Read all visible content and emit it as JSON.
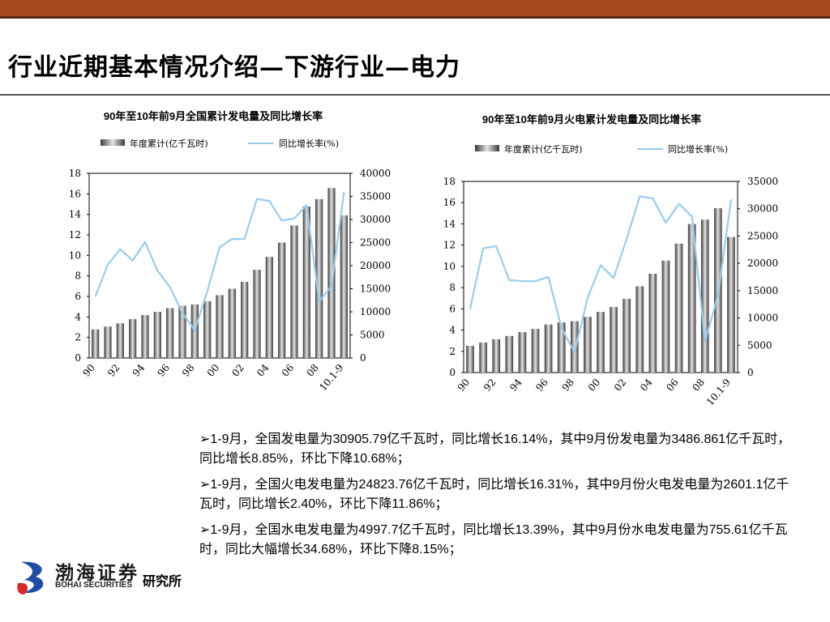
{
  "title": "行业近期基本情况介绍—下游行业—电力",
  "chart_data": [
    {
      "type": "bar",
      "title": "90年至10年前9月全国累计发电量及同比增长率",
      "categories": [
        "90",
        "91",
        "92",
        "93",
        "94",
        "95",
        "96",
        "97",
        "98",
        "99",
        "00",
        "01",
        "02",
        "03",
        "04",
        "05",
        "06",
        "07",
        "08",
        "09",
        "10.1-9"
      ],
      "x_tick_labels": [
        "90",
        "92",
        "94",
        "96",
        "98",
        "00",
        "02",
        "04",
        "06",
        "08",
        "10.1-9"
      ],
      "y_left": {
        "ticks": [
          0,
          2,
          4,
          6,
          8,
          10,
          12,
          14,
          16,
          18
        ],
        "range": [
          0,
          18
        ]
      },
      "y_right": {
        "ticks": [
          0,
          5000,
          10000,
          15000,
          20000,
          25000,
          30000,
          35000,
          40000
        ],
        "range": [
          0,
          40000
        ]
      },
      "series": [
        {
          "name": "年度累计(亿千瓦时)",
          "kind": "bar",
          "axis": "right",
          "values": [
            6200,
            6800,
            7500,
            8400,
            9300,
            10000,
            10800,
            11300,
            11600,
            12300,
            13600,
            15000,
            16500,
            19100,
            21900,
            25000,
            28700,
            32800,
            34400,
            36800,
            30906
          ]
        },
        {
          "name": "同比增长率(%)",
          "kind": "line",
          "axis": "left",
          "values": [
            6.0,
            9.1,
            10.6,
            9.5,
            11.3,
            8.5,
            6.9,
            4.4,
            2.7,
            6.5,
            10.8,
            11.6,
            11.6,
            15.5,
            15.3,
            13.4,
            13.6,
            14.9,
            5.5,
            7.0,
            16.14
          ]
        }
      ]
    },
    {
      "type": "bar",
      "title": "90年至10年前9月火电累计发电量及同比增长率",
      "categories": [
        "90",
        "91",
        "92",
        "93",
        "94",
        "95",
        "96",
        "97",
        "98",
        "99",
        "00",
        "01",
        "02",
        "03",
        "04",
        "05",
        "06",
        "07",
        "08",
        "09",
        "10.1-9"
      ],
      "x_tick_labels": [
        "90",
        "92",
        "94",
        "96",
        "98",
        "00",
        "02",
        "04",
        "06",
        "08",
        "10.1-9"
      ],
      "y_left": {
        "ticks": [
          0,
          2,
          4,
          6,
          8,
          10,
          12,
          14,
          16,
          18
        ],
        "range": [
          0,
          18
        ]
      },
      "y_right": {
        "ticks": [
          0,
          5000,
          10000,
          15000,
          20000,
          25000,
          30000,
          35000
        ],
        "range": [
          0,
          35000
        ]
      },
      "series": [
        {
          "name": "年度累计(亿千瓦时)",
          "kind": "bar",
          "axis": "right",
          "values": [
            4900,
            5500,
            6100,
            6700,
            7400,
            8000,
            8800,
            9200,
            9400,
            10200,
            11100,
            12000,
            13500,
            15800,
            18100,
            20500,
            23600,
            27200,
            28000,
            30100,
            24824
          ]
        },
        {
          "name": "同比增长率(%)",
          "kind": "line",
          "axis": "left",
          "values": [
            6.0,
            11.7,
            11.9,
            8.7,
            8.6,
            8.6,
            9.0,
            4.2,
            1.9,
            7.0,
            10.1,
            8.9,
            12.6,
            16.6,
            16.4,
            14.1,
            15.9,
            14.7,
            2.9,
            7.3,
            16.31
          ]
        }
      ]
    }
  ],
  "bullets": [
    "➢1-9月，全国发电量为30905.79亿千瓦时，同比增长16.14%，其中9月份发电量为3486.861亿千瓦时，同比增长8.85%，环比下降10.68%；",
    "➢1-9月，全国火电发电量为24823.76亿千瓦时，同比增长16.31%，其中9月份火电发电量为2601.1亿千瓦时，同比增长2.40%，环比下降11.86%；",
    "➢1-9月，全国水电发电量为4997.7亿千瓦时，同比增长13.39%，其中9月份水电发电量为755.61亿千瓦时，同比大幅增长34.68%，环比下降8.15%；"
  ],
  "logo": {
    "cn": "渤海证券",
    "en": "BOHAI SECURITIES",
    "dept": "研究所"
  },
  "colors": {
    "band": "#a64b1e",
    "line": "#99ccee",
    "bar_dark": "#3a3a3a",
    "bar_light": "#e4e4e4"
  }
}
